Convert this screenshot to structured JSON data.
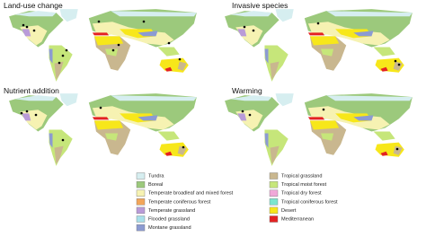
{
  "panels": [
    {
      "title": "Land-use change"
    },
    {
      "title": "Invasive species"
    },
    {
      "title": "Nutrient addition"
    },
    {
      "title": "Warming"
    }
  ],
  "legend": {
    "items": [
      {
        "label": "Tundra",
        "color": "#d6eef0"
      },
      {
        "label": "Boreal",
        "color": "#9cc97c"
      },
      {
        "label": "Temperate broadleaf and mixed forest",
        "color": "#f6f2b2"
      },
      {
        "label": "Temperate coniferous forest",
        "color": "#f2a65a"
      },
      {
        "label": "Temperate grassland",
        "color": "#b99bd8"
      },
      {
        "label": "Flooded grassland",
        "color": "#a8e0ea"
      },
      {
        "label": "Montane grassland",
        "color": "#8c9bd2"
      },
      {
        "label": "Tropical grassland",
        "color": "#c9b78f"
      },
      {
        "label": "Tropical moist forest",
        "color": "#c6e67a"
      },
      {
        "label": "Tropical dry forest",
        "color": "#f0a8d8"
      },
      {
        "label": "Tropical coniferous forest",
        "color": "#7ce6cf"
      },
      {
        "label": "Desert",
        "color": "#f7e71a"
      },
      {
        "label": "Mediterranean",
        "color": "#e42222"
      }
    ]
  }
}
